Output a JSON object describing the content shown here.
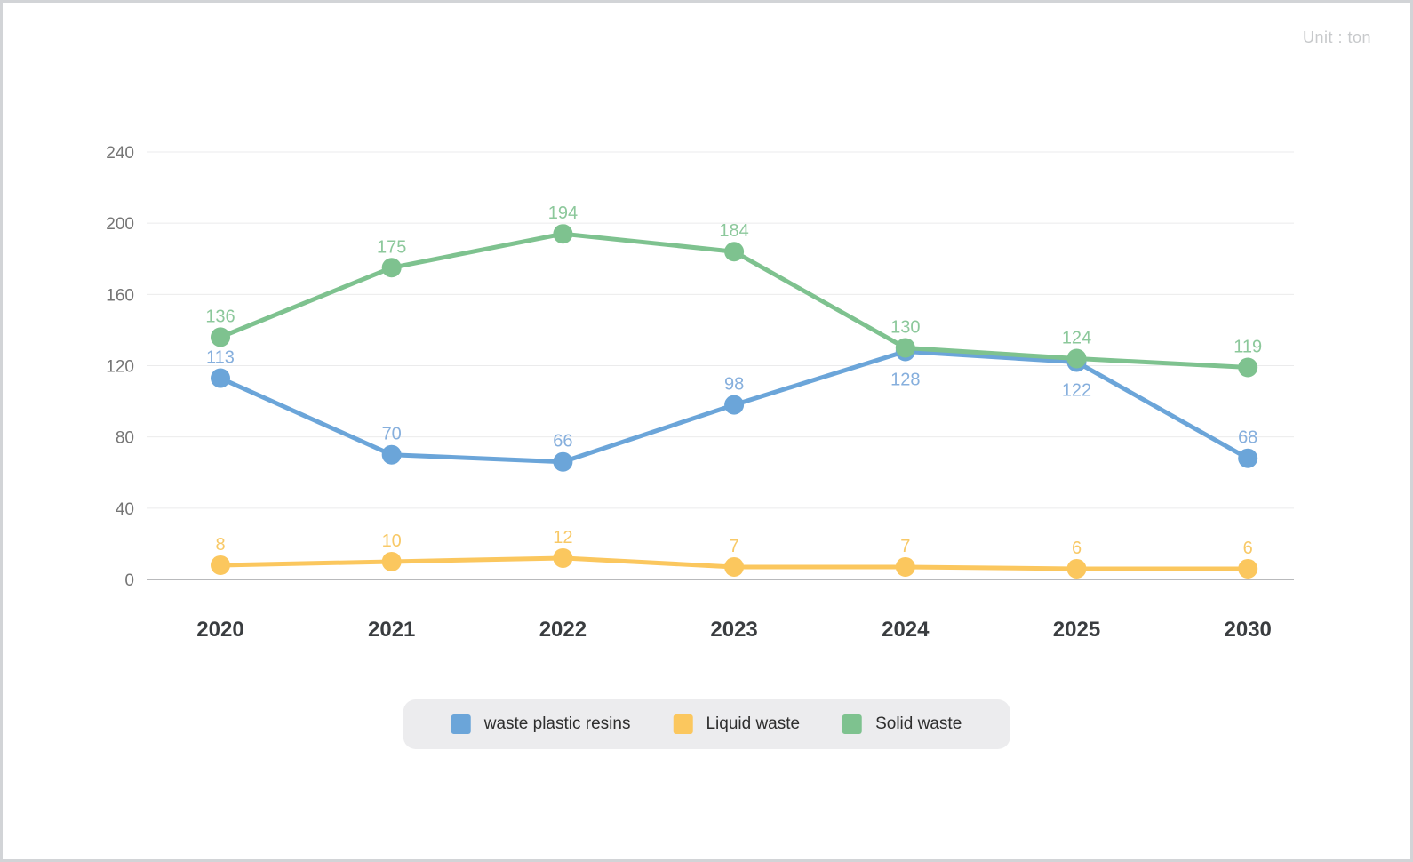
{
  "page": {
    "unit_label": "Unit : ton"
  },
  "chart_data": {
    "type": "line",
    "title": "",
    "xlabel": "",
    "ylabel": "",
    "unit": "ton",
    "categories": [
      "2020",
      "2021",
      "2022",
      "2023",
      "2024",
      "2025",
      "2030"
    ],
    "highlight_category": "2030",
    "highlight_color": "#1a7fd4",
    "y_ticks": [
      0,
      40,
      80,
      120,
      160,
      200,
      240
    ],
    "ylim": [
      0,
      240
    ],
    "grid": true,
    "legend_position": "bottom",
    "series": [
      {
        "name": "waste plastic resins",
        "color": "#6ba5d9",
        "label_color": "#86afdd",
        "values": [
          113,
          70,
          66,
          98,
          128,
          122,
          68
        ]
      },
      {
        "name": "Liquid waste",
        "color": "#fbc75e",
        "label_color": "#f8c967",
        "values": [
          8,
          10,
          12,
          7,
          7,
          6,
          6
        ]
      },
      {
        "name": "Solid waste",
        "color": "#7ec28f",
        "label_color": "#8cc89b",
        "values": [
          136,
          175,
          194,
          184,
          130,
          124,
          119
        ]
      }
    ]
  }
}
